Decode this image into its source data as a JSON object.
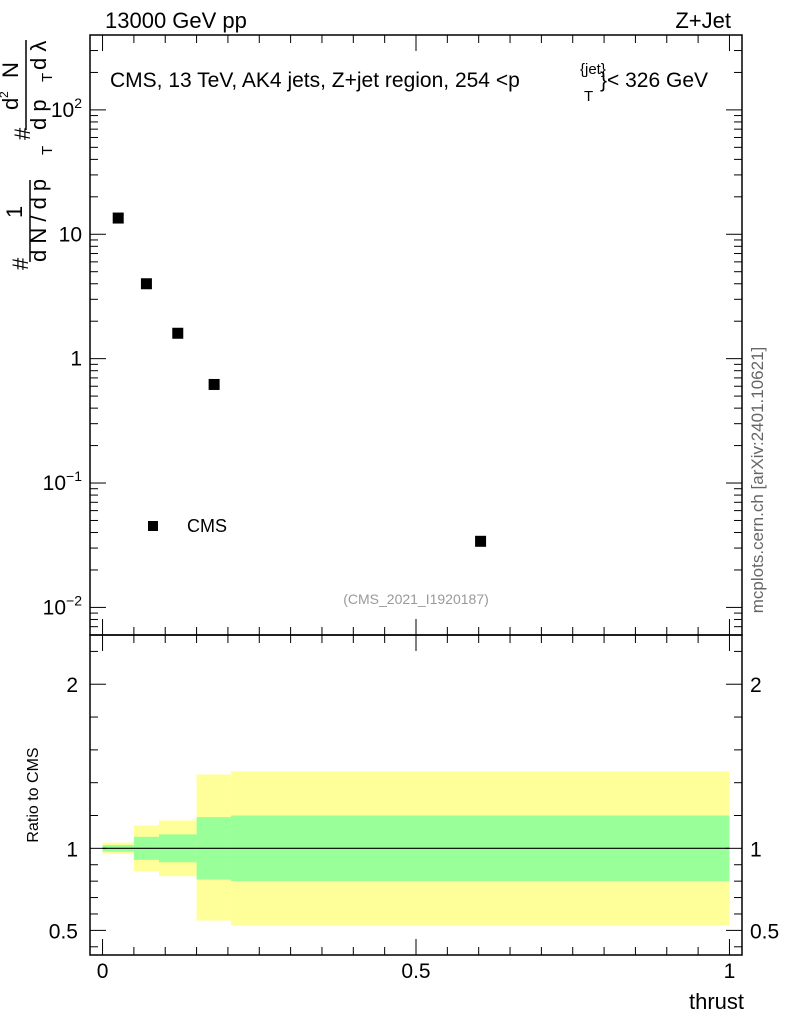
{
  "header": {
    "left": "13000 GeV pp",
    "right": "Z+Jet"
  },
  "side_label": "mcplots.cern.ch [arXiv:2401.10621]",
  "chart_data": [
    {
      "type": "scatter",
      "panel": "main",
      "title": "CMS, 13 TeV, AK4 jets, Z+jet region, 254 <p_T^{jet}< 326 GeV",
      "title_parts": {
        "prefix": "CMS, 13 TeV, AK4 jets, Z+jet region, 254 <p",
        "sup": "{jet}",
        "sub": "T",
        "suffix": "}< 326 GeV"
      },
      "ylabel": "1/(dN/dp_T) d^2N/(dp_T dλ)",
      "ylabel_parts": {
        "hash1": "#",
        "one": "1",
        "denominator": "d N / d p",
        "sub_t": "T",
        "hash2": "#",
        "numerator": "d",
        "sup2": "2",
        "n": "N",
        "dpt": "d p",
        "dlambda": "d λ"
      },
      "yscale": "log",
      "ylim": [
        0.006,
        400
      ],
      "xlim": [
        -0.02,
        1.02
      ],
      "y_ticks": [
        {
          "value": 0.01,
          "base": "10",
          "exp": "−2"
        },
        {
          "value": 0.1,
          "base": "10",
          "exp": "−1"
        },
        {
          "value": 1,
          "base": "1",
          "exp": ""
        },
        {
          "value": 10,
          "base": "10",
          "exp": ""
        },
        {
          "value": 100,
          "base": "10",
          "exp": "2"
        }
      ],
      "series": [
        {
          "name": "CMS",
          "marker": "square",
          "color": "#000000",
          "points": [
            {
              "x": 0.025,
              "y": 13.5
            },
            {
              "x": 0.07,
              "y": 4.0
            },
            {
              "x": 0.12,
              "y": 1.6
            },
            {
              "x": 0.178,
              "y": 0.62
            },
            {
              "x": 0.603,
              "y": 0.034
            }
          ]
        }
      ],
      "legend": {
        "label": "CMS",
        "placement": "bottom-left"
      },
      "analysis_id": "(CMS_2021_I1920187)"
    },
    {
      "type": "area",
      "panel": "ratio",
      "ylabel": "Ratio to CMS",
      "xlabel": "thrust",
      "xlim": [
        -0.02,
        1.02
      ],
      "ylim": [
        0.35,
        2.3
      ],
      "y_ticks": [
        {
          "value": 0.5,
          "label": "0.5"
        },
        {
          "value": 1,
          "label": "1"
        },
        {
          "value": 2,
          "label": "2"
        }
      ],
      "x_ticks": [
        {
          "value": 0,
          "label": "0"
        },
        {
          "value": 0.5,
          "label": "0.5"
        },
        {
          "value": 1,
          "label": "1"
        }
      ],
      "reference_line": 1,
      "band_colors": {
        "inner": "#99ff99",
        "outer": "#ffff99"
      },
      "bins": [
        {
          "x0": 0.0,
          "x1": 0.05,
          "inner": [
            0.98,
            1.02
          ],
          "outer": [
            0.965,
            1.035
          ]
        },
        {
          "x0": 0.05,
          "x1": 0.09,
          "inner": [
            0.93,
            1.07
          ],
          "outer": [
            0.86,
            1.14
          ]
        },
        {
          "x0": 0.09,
          "x1": 0.15,
          "inner": [
            0.915,
            1.085
          ],
          "outer": [
            0.83,
            1.17
          ]
        },
        {
          "x0": 0.15,
          "x1": 0.205,
          "inner": [
            0.81,
            1.19
          ],
          "outer": [
            0.56,
            1.45
          ]
        },
        {
          "x0": 0.205,
          "x1": 1.0,
          "inner": [
            0.8,
            1.2
          ],
          "outer": [
            0.53,
            1.47
          ]
        }
      ]
    }
  ]
}
